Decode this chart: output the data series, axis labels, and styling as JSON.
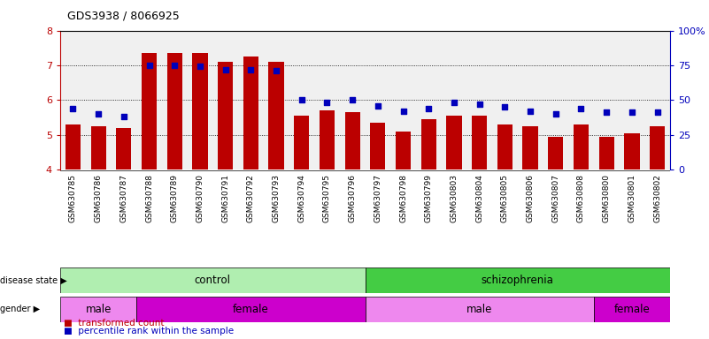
{
  "title": "GDS3938 / 8066925",
  "samples": [
    "GSM630785",
    "GSM630786",
    "GSM630787",
    "GSM630788",
    "GSM630789",
    "GSM630790",
    "GSM630791",
    "GSM630792",
    "GSM630793",
    "GSM630794",
    "GSM630795",
    "GSM630796",
    "GSM630797",
    "GSM630798",
    "GSM630799",
    "GSM630803",
    "GSM630804",
    "GSM630805",
    "GSM630806",
    "GSM630807",
    "GSM630808",
    "GSM630800",
    "GSM630801",
    "GSM630802"
  ],
  "bar_values": [
    5.3,
    5.25,
    5.2,
    7.35,
    7.35,
    7.35,
    7.1,
    7.25,
    7.1,
    5.55,
    5.7,
    5.65,
    5.35,
    5.1,
    5.45,
    5.55,
    5.55,
    5.3,
    5.25,
    4.95,
    5.3,
    4.95,
    5.05,
    5.25
  ],
  "dot_values_pct": [
    44,
    40,
    38,
    75,
    75,
    74,
    72,
    72,
    71,
    50,
    48,
    50,
    46,
    42,
    44,
    48,
    47,
    45,
    42,
    40,
    44,
    41,
    41,
    41
  ],
  "ylim_left": [
    4,
    8
  ],
  "ylim_right": [
    0,
    100
  ],
  "yticks_left": [
    4,
    5,
    6,
    7,
    8
  ],
  "yticks_right": [
    0,
    25,
    50,
    75,
    100
  ],
  "bar_color": "#BB0000",
  "dot_color": "#0000BB",
  "bg_color": "#F0F0F0",
  "disease_colors": {
    "control": "#B0EEB0",
    "schizophrenia": "#44CC44"
  },
  "gender_colors": {
    "male": "#EE88EE",
    "female": "#CC00CC"
  },
  "disease_groups": [
    {
      "label": "control",
      "start": 0,
      "end": 12,
      "color": "#B0EEB0"
    },
    {
      "label": "schizophrenia",
      "start": 12,
      "end": 24,
      "color": "#44CC44"
    }
  ],
  "gender_groups": [
    {
      "label": "male",
      "start": 0,
      "end": 3,
      "color": "#EE88EE"
    },
    {
      "label": "female",
      "start": 3,
      "end": 12,
      "color": "#CC00CC"
    },
    {
      "label": "male",
      "start": 12,
      "end": 21,
      "color": "#EE88EE"
    },
    {
      "label": "female",
      "start": 21,
      "end": 24,
      "color": "#CC00CC"
    }
  ]
}
